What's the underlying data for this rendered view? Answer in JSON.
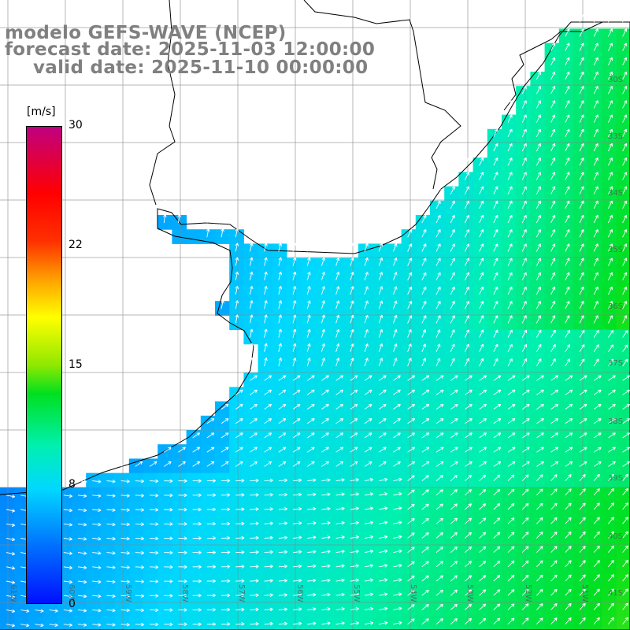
{
  "title": {
    "line1": "modelo GEFS-WAVE (NCEP)",
    "line2": "forecast date: 2025-11-03 12:00:00",
    "line3": "valid date: 2025-11-10 00:00:00"
  },
  "colorbar": {
    "unit": "[m/s]",
    "ticks": [
      "30",
      "22",
      "15",
      "8",
      "0"
    ]
  },
  "lat_labels": [
    "30S",
    "33S",
    "34S",
    "35S",
    "36S",
    "37S",
    "38S",
    "39S",
    "40S",
    "41S"
  ],
  "lon_labels": [
    "61W",
    "60W",
    "59W",
    "58W",
    "57W",
    "56W",
    "55W",
    "54W",
    "53W",
    "52W",
    "51W"
  ],
  "colors": {
    "land": "#ffffff",
    "grid": "#888888",
    "coast": "#000000",
    "arrows": "#ffffff"
  },
  "icons": {
    "wind_arrow": "arrow-icon"
  }
}
